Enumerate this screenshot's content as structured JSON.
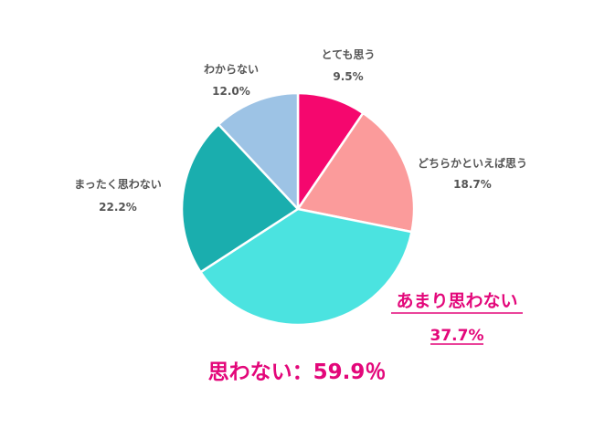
{
  "chart_data": {
    "type": "pie",
    "slices": [
      {
        "label": "とても思う",
        "value": 9.5,
        "display": "9.5%",
        "color": "#f5076e"
      },
      {
        "label": "どちらかといえば思う",
        "value": 18.7,
        "display": "18.7%",
        "color": "#fb9b9b"
      },
      {
        "label": "あまり思わない",
        "value": 37.7,
        "display": "37.7%",
        "color": "#4be3e0",
        "highlight": true
      },
      {
        "label": "まったく思わない",
        "value": 22.2,
        "display": "22.2%",
        "color": "#1aaeae"
      },
      {
        "label": "わからない",
        "value": 12.0,
        "display": "12.0%",
        "color": "#9dc3e5"
      }
    ]
  },
  "summary": "思わない：59.9％",
  "accent_color": "#e3077a"
}
